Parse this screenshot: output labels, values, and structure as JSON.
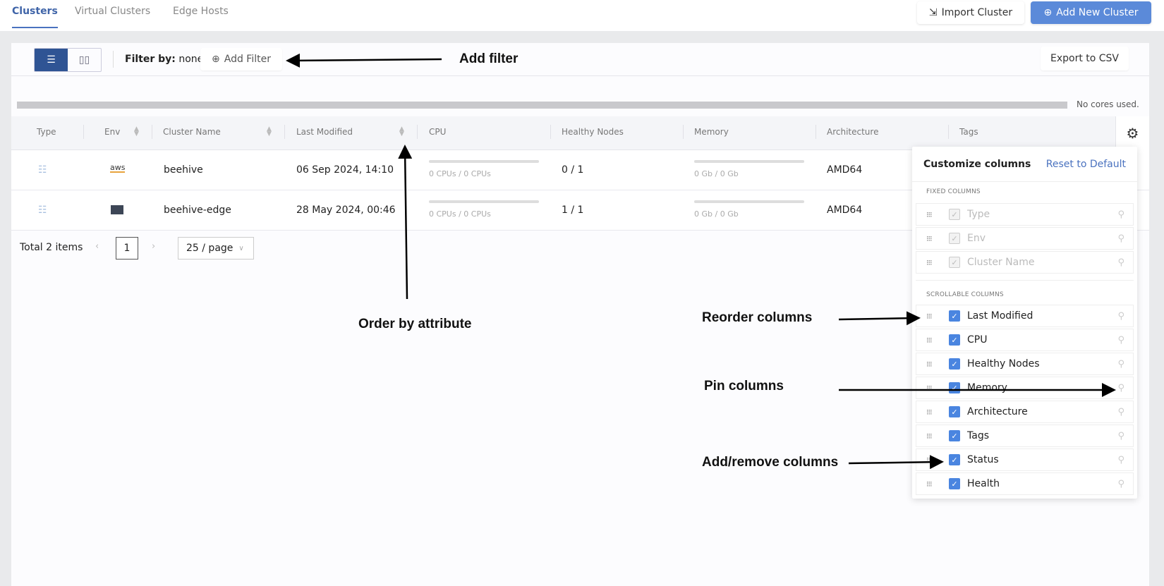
{
  "tabs": [
    {
      "label": "Clusters",
      "active": true
    },
    {
      "label": "Virtual Clusters"
    },
    {
      "label": "Edge Hosts"
    }
  ],
  "header_buttons": {
    "import": "Import Cluster",
    "add": "Add New Cluster"
  },
  "toolbar": {
    "filter_label": "Filter by:",
    "filter_value": "none",
    "add_filter": "Add Filter",
    "export": "Export to CSV"
  },
  "usage": {
    "text": "No cores used."
  },
  "columns": [
    "Type",
    "Env",
    "Cluster Name",
    "Last Modified",
    "CPU",
    "Healthy Nodes",
    "Memory",
    "Architecture",
    "Tags"
  ],
  "rows": [
    {
      "env": "aws",
      "name": "beehive",
      "modified": "06 Sep 2024, 14:10",
      "cpu": "0 CPUs / 0 CPUs",
      "nodes": "0 / 1",
      "memory": "0 Gb / 0 Gb",
      "arch": "AMD64"
    },
    {
      "env": "edge",
      "name": "beehive-edge",
      "modified": "28 May 2024, 00:46",
      "cpu": "0 CPUs / 0 CPUs",
      "nodes": "1 / 1",
      "memory": "0 Gb / 0 Gb",
      "arch": "AMD64"
    }
  ],
  "pagination": {
    "total": "Total 2 items",
    "page": "1",
    "page_size": "25 / page"
  },
  "customize": {
    "title": "Customize columns",
    "reset": "Reset to Default",
    "fixed_title": "FIXED COLUMNS",
    "fixed": [
      "Type",
      "Env",
      "Cluster Name"
    ],
    "scroll_title": "SCROLLABLE COLUMNS",
    "scrollable": [
      "Last Modified",
      "CPU",
      "Healthy Nodes",
      "Memory",
      "Architecture",
      "Tags",
      "Status",
      "Health"
    ]
  },
  "annotations": {
    "add_filter": "Add filter",
    "order": "Order by attribute",
    "reorder": "Reorder columns",
    "pin": "Pin columns",
    "add_remove": "Add/remove columns"
  },
  "colors": {
    "accent": "#5b8ad9",
    "toggle_active": "#2f5494",
    "checkbox": "#4a85e0"
  }
}
